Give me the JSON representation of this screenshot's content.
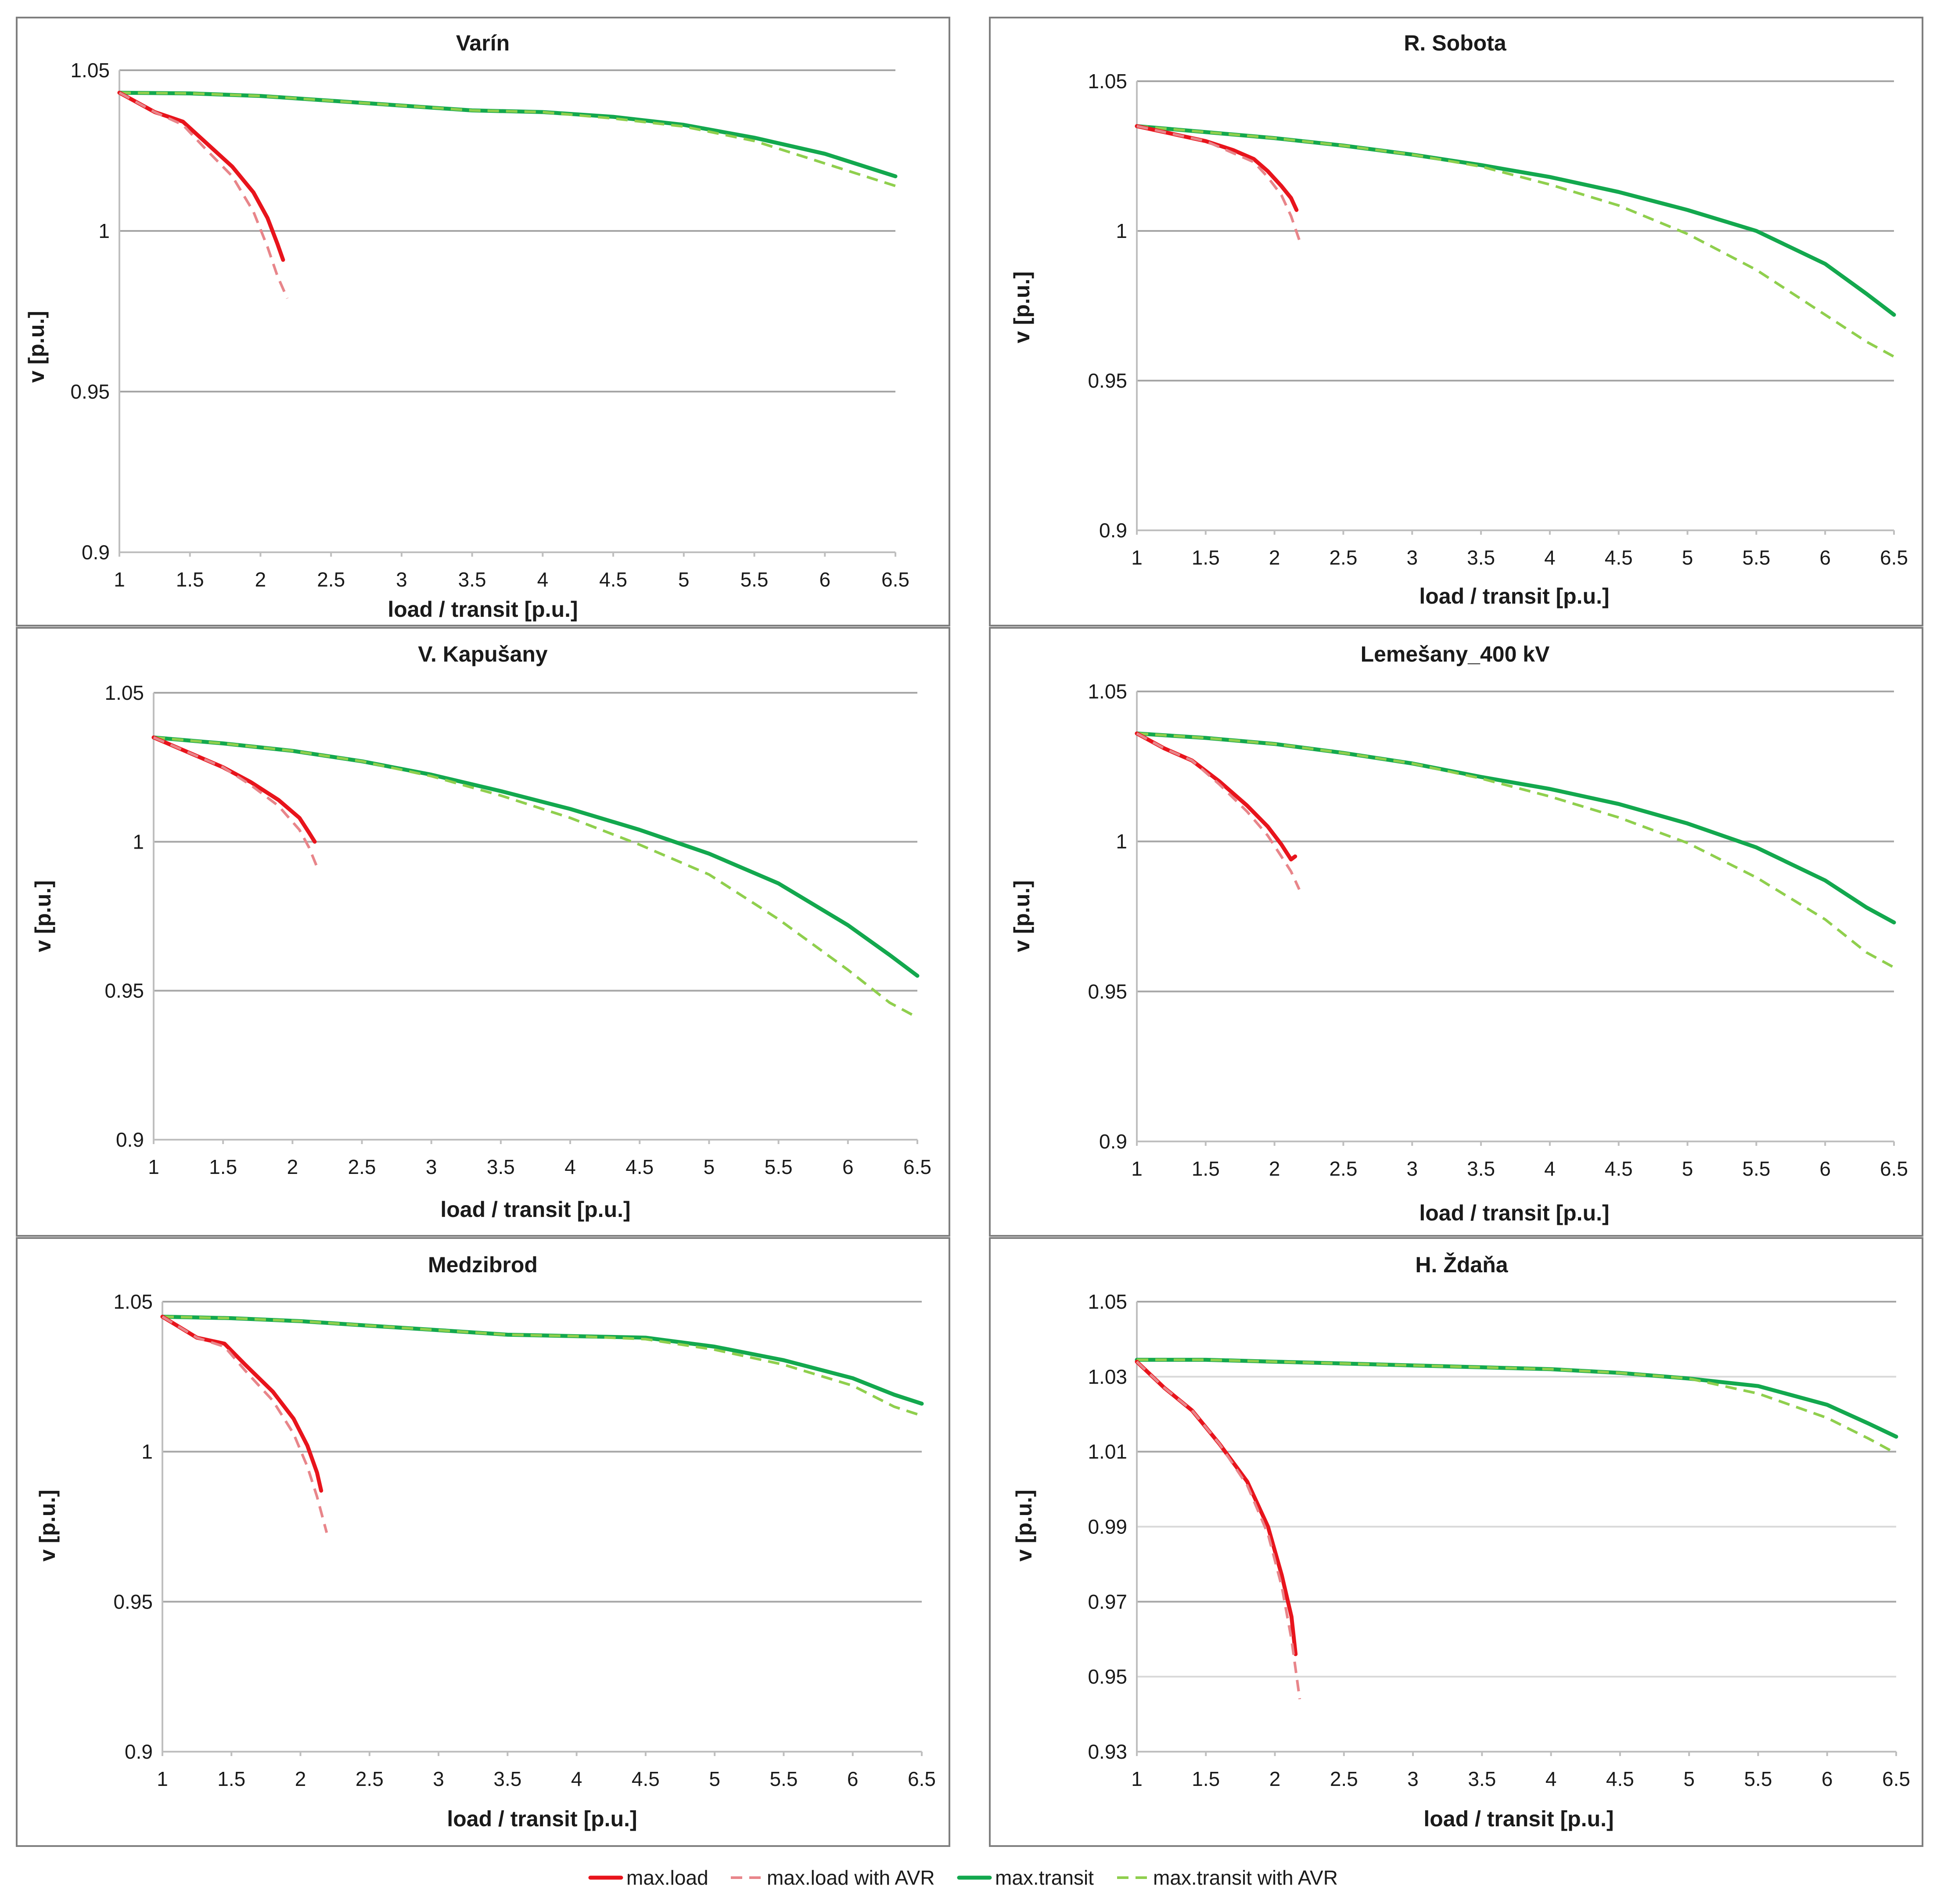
{
  "chart_data": [
    {
      "type": "line",
      "title": "Varín",
      "xlabel": "load / transit  [p.u.]",
      "ylabel": "v  [p.u.]",
      "xlim": [
        1,
        6.5
      ],
      "ylim": [
        0.9,
        1.05
      ],
      "xticks": [
        "1",
        "1.5",
        "2",
        "2.5",
        "3",
        "3.5",
        "4",
        "4.5",
        "5",
        "5.5",
        "6",
        "6.5"
      ],
      "yticks": [
        "0.9",
        "0.95",
        "1",
        "1.05"
      ],
      "ytick_values": [
        0.9,
        0.95,
        1.0,
        1.05
      ],
      "series": [
        {
          "name": "max.load",
          "x": [
            1,
            1.25,
            1.45,
            1.6,
            1.8,
            1.95,
            2.05,
            2.12,
            2.16
          ],
          "y": [
            1.043,
            1.037,
            1.034,
            1.028,
            1.02,
            1.012,
            1.004,
            0.996,
            0.991
          ]
        },
        {
          "name": "max.load with AVR",
          "x": [
            1,
            1.25,
            1.45,
            1.6,
            1.8,
            1.95,
            2.05,
            2.12,
            2.19
          ],
          "y": [
            1.043,
            1.037,
            1.033,
            1.026,
            1.017,
            1.006,
            0.995,
            0.986,
            0.979
          ]
        },
        {
          "name": "max.transit",
          "x": [
            1,
            1.5,
            2,
            2.5,
            3,
            3.5,
            4,
            4.5,
            5,
            5.5,
            6,
            6.5
          ],
          "y": [
            1.043,
            1.0428,
            1.042,
            1.0405,
            1.039,
            1.0375,
            1.037,
            1.0355,
            1.033,
            1.029,
            1.024,
            1.017
          ]
        },
        {
          "name": "max.transit with AVR",
          "x": [
            1,
            1.5,
            2,
            2.5,
            3,
            3.5,
            4,
            4.5,
            5,
            5.5,
            6,
            6.5
          ],
          "y": [
            1.043,
            1.0428,
            1.042,
            1.0405,
            1.039,
            1.0375,
            1.037,
            1.035,
            1.0325,
            1.028,
            1.021,
            1.014
          ]
        }
      ]
    },
    {
      "type": "line",
      "title": "R. Sobota",
      "xlabel": "load / transit  [p.u.]",
      "ylabel": "v  [p.u.]",
      "xlim": [
        1,
        6.5
      ],
      "ylim": [
        0.9,
        1.05
      ],
      "xticks": [
        "1",
        "1.5",
        "2",
        "2.5",
        "3",
        "3.5",
        "4",
        "4.5",
        "5",
        "5.5",
        "6",
        "6.5"
      ],
      "yticks": [
        "0.9",
        "0.95",
        "1",
        "1.05"
      ],
      "ytick_values": [
        0.9,
        0.95,
        1.0,
        1.05
      ],
      "series": [
        {
          "name": "max.load",
          "x": [
            1,
            1.3,
            1.5,
            1.7,
            1.85,
            1.95,
            2.05,
            2.12,
            2.16
          ],
          "y": [
            1.035,
            1.032,
            1.03,
            1.027,
            1.024,
            1.02,
            1.015,
            1.011,
            1.007
          ]
        },
        {
          "name": "max.load with AVR",
          "x": [
            1,
            1.3,
            1.5,
            1.7,
            1.85,
            1.95,
            2.05,
            2.12,
            2.18
          ],
          "y": [
            1.035,
            1.032,
            1.03,
            1.026,
            1.023,
            1.018,
            1.012,
            1.005,
            0.997
          ]
        },
        {
          "name": "max.transit",
          "x": [
            1,
            1.5,
            2,
            2.5,
            3,
            3.5,
            4,
            4.5,
            5,
            5.5,
            6,
            6.3,
            6.5
          ],
          "y": [
            1.035,
            1.033,
            1.031,
            1.0285,
            1.0255,
            1.022,
            1.018,
            1.013,
            1.007,
            1.0,
            0.989,
            0.979,
            0.972
          ]
        },
        {
          "name": "max.transit with AVR",
          "x": [
            1,
            1.5,
            2,
            2.5,
            3,
            3.5,
            4,
            4.5,
            5,
            5.5,
            6,
            6.3,
            6.5
          ],
          "y": [
            1.035,
            1.033,
            1.031,
            1.0285,
            1.0255,
            1.0215,
            1.0155,
            1.0085,
            0.999,
            0.987,
            0.972,
            0.963,
            0.958
          ]
        }
      ]
    },
    {
      "type": "line",
      "title": "V. Kapušany",
      "xlabel": "load / transit  [p.u.]",
      "ylabel": "v  [p.u.]",
      "xlim": [
        1,
        6.5
      ],
      "ylim": [
        0.9,
        1.05
      ],
      "xticks": [
        "1",
        "1.5",
        "2",
        "2.5",
        "3",
        "3.5",
        "4",
        "4.5",
        "5",
        "5.5",
        "6",
        "6.5"
      ],
      "yticks": [
        "0.9",
        "0.95",
        "1",
        "1.05"
      ],
      "ytick_values": [
        0.9,
        0.95,
        1.0,
        1.05
      ],
      "series": [
        {
          "name": "max.load",
          "x": [
            1,
            1.3,
            1.5,
            1.7,
            1.9,
            2.05,
            2.12,
            2.16
          ],
          "y": [
            1.035,
            1.029,
            1.025,
            1.02,
            1.014,
            1.008,
            1.003,
            1.0
          ]
        },
        {
          "name": "max.load with AVR",
          "x": [
            1,
            1.3,
            1.5,
            1.7,
            1.9,
            2.05,
            2.12,
            2.19
          ],
          "y": [
            1.035,
            1.029,
            1.025,
            1.019,
            1.012,
            1.004,
            0.998,
            0.99
          ]
        },
        {
          "name": "max.transit",
          "x": [
            1,
            1.5,
            2,
            2.5,
            3,
            3.5,
            4,
            4.5,
            5,
            5.5,
            6,
            6.3,
            6.5
          ],
          "y": [
            1.035,
            1.033,
            1.0305,
            1.027,
            1.0225,
            1.017,
            1.011,
            1.004,
            0.996,
            0.986,
            0.972,
            0.962,
            0.955
          ]
        },
        {
          "name": "max.transit with AVR",
          "x": [
            1,
            1.5,
            2,
            2.5,
            3,
            3.5,
            4,
            4.5,
            5,
            5.5,
            6,
            6.3,
            6.5
          ],
          "y": [
            1.035,
            1.033,
            1.0305,
            1.027,
            1.022,
            1.0155,
            1.008,
            0.999,
            0.989,
            0.974,
            0.957,
            0.946,
            0.941
          ]
        }
      ]
    },
    {
      "type": "line",
      "title": "Lemešany_400 kV",
      "xlabel": "load / transit  [p.u.]",
      "ylabel": "v  [p.u.]",
      "xlim": [
        1,
        6.5
      ],
      "ylim": [
        0.9,
        1.05
      ],
      "xticks": [
        "1",
        "1.5",
        "2",
        "2.5",
        "3",
        "3.5",
        "4",
        "4.5",
        "5",
        "5.5",
        "6",
        "6.5"
      ],
      "yticks": [
        "0.9",
        "0.95",
        "1",
        "1.05"
      ],
      "ytick_values": [
        0.9,
        0.95,
        1.0,
        1.05
      ],
      "series": [
        {
          "name": "max.load",
          "x": [
            1,
            1.2,
            1.4,
            1.6,
            1.8,
            1.95,
            2.05,
            2.12,
            2.15
          ],
          "y": [
            1.036,
            1.031,
            1.027,
            1.02,
            1.012,
            1.005,
            0.999,
            0.994,
            0.995
          ]
        },
        {
          "name": "max.load with AVR",
          "x": [
            1,
            1.2,
            1.4,
            1.6,
            1.8,
            1.95,
            2.05,
            2.12,
            2.18
          ],
          "y": [
            1.036,
            1.031,
            1.027,
            1.019,
            1.01,
            1.002,
            0.995,
            0.99,
            0.984
          ]
        },
        {
          "name": "max.transit",
          "x": [
            1,
            1.5,
            2,
            2.5,
            3,
            3.5,
            4,
            4.5,
            5,
            5.5,
            6,
            6.3,
            6.5
          ],
          "y": [
            1.036,
            1.0345,
            1.0325,
            1.0295,
            1.026,
            1.0215,
            1.0175,
            1.0125,
            1.006,
            0.998,
            0.987,
            0.978,
            0.973
          ]
        },
        {
          "name": "max.transit with AVR",
          "x": [
            1,
            1.5,
            2,
            2.5,
            3,
            3.5,
            4,
            4.5,
            5,
            5.5,
            6,
            6.3,
            6.5
          ],
          "y": [
            1.036,
            1.0345,
            1.0325,
            1.0295,
            1.026,
            1.021,
            1.015,
            1.008,
            0.9995,
            0.988,
            0.974,
            0.963,
            0.958
          ]
        }
      ]
    },
    {
      "type": "line",
      "title": "Medzibrod",
      "xlabel": "load / transit  [p.u.]",
      "ylabel": "v  [p.u.]",
      "xlim": [
        1,
        6.5
      ],
      "ylim": [
        0.9,
        1.05
      ],
      "xticks": [
        "1",
        "1.5",
        "2",
        "2.5",
        "3",
        "3.5",
        "4",
        "4.5",
        "5",
        "5.5",
        "6",
        "6.5"
      ],
      "yticks": [
        "0.9",
        "0.95",
        "1",
        "1.05"
      ],
      "ytick_values": [
        0.9,
        0.95,
        1.0,
        1.05
      ],
      "series": [
        {
          "name": "max.load",
          "x": [
            1,
            1.25,
            1.45,
            1.6,
            1.8,
            1.95,
            2.05,
            2.12,
            2.15
          ],
          "y": [
            1.045,
            1.038,
            1.036,
            1.029,
            1.02,
            1.011,
            1.002,
            0.993,
            0.987
          ]
        },
        {
          "name": "max.load with AVR",
          "x": [
            1,
            1.25,
            1.45,
            1.6,
            1.8,
            1.95,
            2.05,
            2.12,
            2.19
          ],
          "y": [
            1.045,
            1.038,
            1.035,
            1.027,
            1.017,
            1.006,
            0.995,
            0.985,
            0.973
          ]
        },
        {
          "name": "max.transit",
          "x": [
            1,
            1.5,
            2,
            2.5,
            3,
            3.5,
            4,
            4.5,
            5,
            5.5,
            6,
            6.3,
            6.5
          ],
          "y": [
            1.045,
            1.0445,
            1.0435,
            1.042,
            1.0405,
            1.039,
            1.0385,
            1.038,
            1.035,
            1.0305,
            1.0245,
            1.019,
            1.016
          ]
        },
        {
          "name": "max.transit with AVR",
          "x": [
            1,
            1.5,
            2,
            2.5,
            3,
            3.5,
            4,
            4.5,
            5,
            5.5,
            6,
            6.3,
            6.5
          ],
          "y": [
            1.045,
            1.0445,
            1.0435,
            1.042,
            1.0405,
            1.039,
            1.0385,
            1.0375,
            1.034,
            1.029,
            1.022,
            1.015,
            1.012
          ]
        }
      ]
    },
    {
      "type": "line",
      "title": "H. Ždaňa",
      "xlabel": "load / transit  [p.u.]",
      "ylabel": "v  [p.u.]",
      "xlim": [
        1,
        6.5
      ],
      "ylim": [
        0.93,
        1.05
      ],
      "xticks": [
        "1",
        "1.5",
        "2",
        "2.5",
        "3",
        "3.5",
        "4",
        "4.5",
        "5",
        "5.5",
        "6",
        "6.5"
      ],
      "yticks": [
        "0.93",
        "0.95",
        "0.97",
        "0.99",
        "1.01",
        "1.03",
        "1.05"
      ],
      "ytick_values": [
        0.93,
        0.95,
        0.97,
        0.99,
        1.01,
        1.03,
        1.05
      ],
      "series": [
        {
          "name": "max.load",
          "x": [
            1,
            1.2,
            1.4,
            1.6,
            1.8,
            1.95,
            2.05,
            2.12,
            2.15
          ],
          "y": [
            1.034,
            1.027,
            1.021,
            1.012,
            1.002,
            0.99,
            0.977,
            0.966,
            0.956
          ]
        },
        {
          "name": "max.load with AVR",
          "x": [
            1,
            1.2,
            1.4,
            1.6,
            1.8,
            1.95,
            2.05,
            2.12,
            2.18
          ],
          "y": [
            1.034,
            1.027,
            1.021,
            1.012,
            1.001,
            0.988,
            0.974,
            0.96,
            0.944
          ]
        },
        {
          "name": "max.transit",
          "x": [
            1,
            1.5,
            2,
            2.5,
            3,
            3.5,
            4,
            4.5,
            5,
            5.5,
            6,
            6.3,
            6.5
          ],
          "y": [
            1.0345,
            1.0345,
            1.034,
            1.0335,
            1.033,
            1.0325,
            1.032,
            1.031,
            1.0295,
            1.0275,
            1.0225,
            1.0175,
            1.014
          ]
        },
        {
          "name": "max.transit with AVR",
          "x": [
            1,
            1.5,
            2,
            2.5,
            3,
            3.5,
            4,
            4.5,
            5,
            5.5,
            6,
            6.3,
            6.5
          ],
          "y": [
            1.0345,
            1.0345,
            1.034,
            1.0335,
            1.033,
            1.0325,
            1.032,
            1.031,
            1.0295,
            1.0255,
            1.019,
            1.0135,
            1.0095
          ]
        }
      ]
    }
  ],
  "legend": {
    "position": "bottom-center",
    "entries": [
      {
        "label": "max.load",
        "style": "solid",
        "color": "#e8141c"
      },
      {
        "label": "max.load with AVR",
        "style": "dashed",
        "color": "#e8858a"
      },
      {
        "label": "max.transit",
        "style": "solid",
        "color": "#13a84e"
      },
      {
        "label": "max.transit with AVR",
        "style": "dashed",
        "color": "#8fcf4d"
      }
    ]
  },
  "colors": {
    "frame": "#7f7f7f",
    "grid": "#a6a6a6"
  }
}
